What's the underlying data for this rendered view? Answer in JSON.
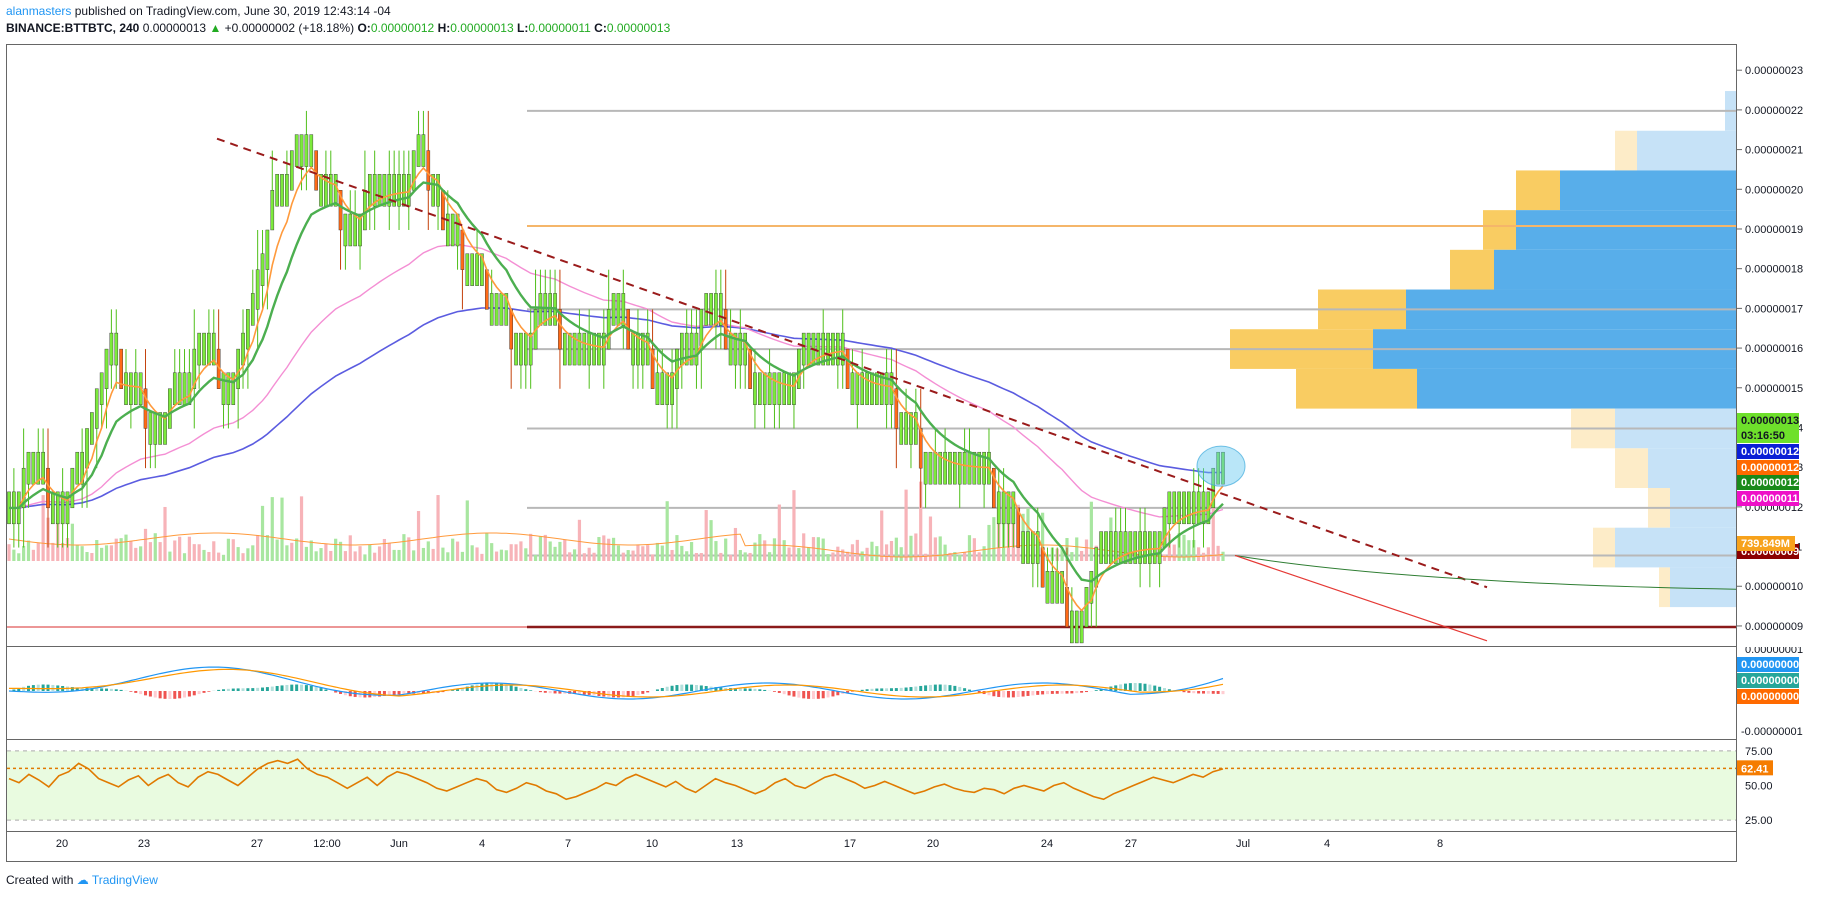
{
  "header": {
    "user": "alanmasters",
    "published": "published on TradingView.com, June 30, 2019 12:43:14 -04",
    "symbol": "BINANCE:BTTBTC, 240",
    "last": "0.00000013",
    "change_arrow": "▲",
    "change": "+0.00000002 (+18.18%)",
    "o_label": "O:",
    "o": "0.00000012",
    "h_label": "H:",
    "h": "0.00000013",
    "l_label": "L:",
    "l": "0.00000011",
    "c_label": "C:",
    "c": "0.00000013"
  },
  "footer": {
    "created": "Created with",
    "brand": "TradingView"
  },
  "colors": {
    "bull": "#7cea3c",
    "bear": "#ff6a17",
    "ema_fast": "#ff9a3c",
    "ema_slow": "#4caf50",
    "ma_pink": "#f48fd4",
    "ma_blue": "#5b5ce0",
    "trendline": "#9a1b1b",
    "vp_blue": "#58aeea",
    "vp_blue_light": "#c6e2f7",
    "vp_orange": "#f9cc62",
    "vp_orange_light": "#fdecc8",
    "rsi_line": "#e07a00",
    "rsi_band": "#e9fbe0"
  },
  "chart_data": [
    {
      "type": "candlestick",
      "title": "BINANCE:BTTBTC, 240",
      "x_ticks": [
        "20",
        "23",
        "27",
        "12:00",
        "Jun",
        "4",
        "7",
        "10",
        "13",
        "17",
        "20",
        "24",
        "27",
        "Jul",
        "4",
        "8"
      ],
      "y_ticks": [
        "0.00000023",
        "0.00000022",
        "0.00000021",
        "0.00000020",
        "0.00000019",
        "0.00000018",
        "0.00000017",
        "0.00000016",
        "0.00000015",
        "0.00000014",
        "0.00000013",
        "0.00000012",
        "0.00000011",
        "0.00000010",
        "0.00000009"
      ],
      "ylim": [
        8.8e-08,
        2.34e-07
      ],
      "close_path": [
        1.2e-07,
        1.3e-07,
        1.2e-07,
        1.3e-07,
        1.6e-07,
        1.5e-07,
        1.4e-07,
        1.5e-07,
        1.6e-07,
        1.5e-07,
        1.7e-07,
        2e-07,
        2.1e-07,
        2e-07,
        1.9e-07,
        2e-07,
        2e-07,
        2.1e-07,
        1.9e-07,
        1.8e-07,
        1.7e-07,
        1.6e-07,
        1.7e-07,
        1.6e-07,
        1.6e-07,
        1.7e-07,
        1.6e-07,
        1.5e-07,
        1.6e-07,
        1.7e-07,
        1.6e-07,
        1.5e-07,
        1.5e-07,
        1.6e-07,
        1.6e-07,
        1.5e-07,
        1.5e-07,
        1.4e-07,
        1.3e-07,
        1.3e-07,
        1.3e-07,
        1.2e-07,
        1.1e-07,
        1e-07,
        9e-08,
        1.1e-07,
        1.1e-07,
        1.1e-07,
        1.2e-07,
        1.2e-07,
        1.3e-07
      ],
      "horizontal_levels": [
        2.2e-07,
        1.7e-07,
        1.6e-07,
        1.4e-07,
        1.2e-07,
        1.08e-07
      ],
      "orange_level": 1.91e-07,
      "support_level": 9e-08,
      "trendline": {
        "from": [
          "May 26",
          2.13e-07
        ],
        "to": [
          "Jul 9",
          1e-07
        ]
      },
      "volume_profile": [
        {
          "price": 2.2e-07,
          "blue": 0.1,
          "orange": 0
        },
        {
          "price": 2.1e-07,
          "blue": 0.9,
          "orange": 0.2
        },
        {
          "price": 2e-07,
          "blue": 1.6,
          "orange": 0.4
        },
        {
          "price": 1.9e-07,
          "blue": 2.0,
          "orange": 0.3
        },
        {
          "price": 1.8e-07,
          "blue": 2.2,
          "orange": 0.4
        },
        {
          "price": 1.7e-07,
          "blue": 3.0,
          "orange": 0.8
        },
        {
          "price": 1.6e-07,
          "blue": 3.3,
          "orange": 1.3
        },
        {
          "price": 1.5e-07,
          "blue": 2.9,
          "orange": 1.1
        },
        {
          "price": 1.4e-07,
          "blue": 1.1,
          "orange": 0.4
        },
        {
          "price": 1.3e-07,
          "blue": 0.8,
          "orange": 0.3
        },
        {
          "price": 1.2e-07,
          "blue": 0.6,
          "orange": 0.2
        },
        {
          "price": 1.1e-07,
          "blue": 1.1,
          "orange": 0.2
        },
        {
          "price": 1e-07,
          "blue": 0.6,
          "orange": 0.1
        }
      ],
      "price_labels": [
        {
          "text": "BTTBTC",
          "value": "0.00000013",
          "color": "#6ee02b"
        },
        {
          "text": "",
          "value": "03:16:50",
          "color": "#6ee02b"
        },
        {
          "text": "",
          "value": "0.00000012",
          "color": "#0a1fd6"
        },
        {
          "text": "",
          "value": "0.00000012",
          "color": "#ff6a00"
        },
        {
          "text": "",
          "value": "0.00000012",
          "color": "#1a8a1a"
        },
        {
          "text": "",
          "value": "0.00000011",
          "color": "#ee10c8"
        },
        {
          "text": "",
          "value": "0.00000009",
          "color": "#8b0000"
        }
      ],
      "volume_label": "739.849M"
    },
    {
      "type": "macd",
      "y_ticks": [
        "0.00000001",
        "-0.00000001"
      ],
      "labels": [
        {
          "value": "0.00000000",
          "color": "#2196f3"
        },
        {
          "value": "0.00000000",
          "color": "#26a69a"
        },
        {
          "value": "0.00000000",
          "color": "#ff6a00"
        }
      ]
    },
    {
      "type": "line",
      "name": "RSI",
      "y_ticks": [
        "75.00",
        "50.00",
        "25.00"
      ],
      "ylim": [
        20,
        80
      ],
      "last_value": "62.41",
      "values": [
        55,
        52,
        58,
        54,
        49,
        57,
        60,
        66,
        62,
        55,
        52,
        49,
        54,
        57,
        50,
        55,
        58,
        52,
        49,
        56,
        60,
        58,
        54,
        50,
        56,
        62,
        66,
        68,
        66,
        69,
        62,
        58,
        56,
        52,
        48,
        52,
        56,
        50,
        56,
        60,
        58,
        55,
        52,
        48,
        46,
        49,
        52,
        55,
        53,
        47,
        45,
        48,
        52,
        50,
        46,
        44,
        40,
        42,
        45,
        48,
        52,
        50,
        55,
        58,
        55,
        52,
        49,
        53,
        48,
        45,
        50,
        55,
        52,
        50,
        47,
        44,
        47,
        52,
        55,
        50,
        48,
        52,
        56,
        58,
        55,
        52,
        48,
        50,
        53,
        50,
        47,
        44,
        46,
        49,
        51,
        48,
        46,
        45,
        48,
        47,
        44,
        48,
        50,
        48,
        46,
        50,
        52,
        48,
        45,
        42,
        40,
        44,
        47,
        50,
        53,
        56,
        54,
        52,
        55,
        58,
        56,
        60,
        62
      ]
    }
  ]
}
